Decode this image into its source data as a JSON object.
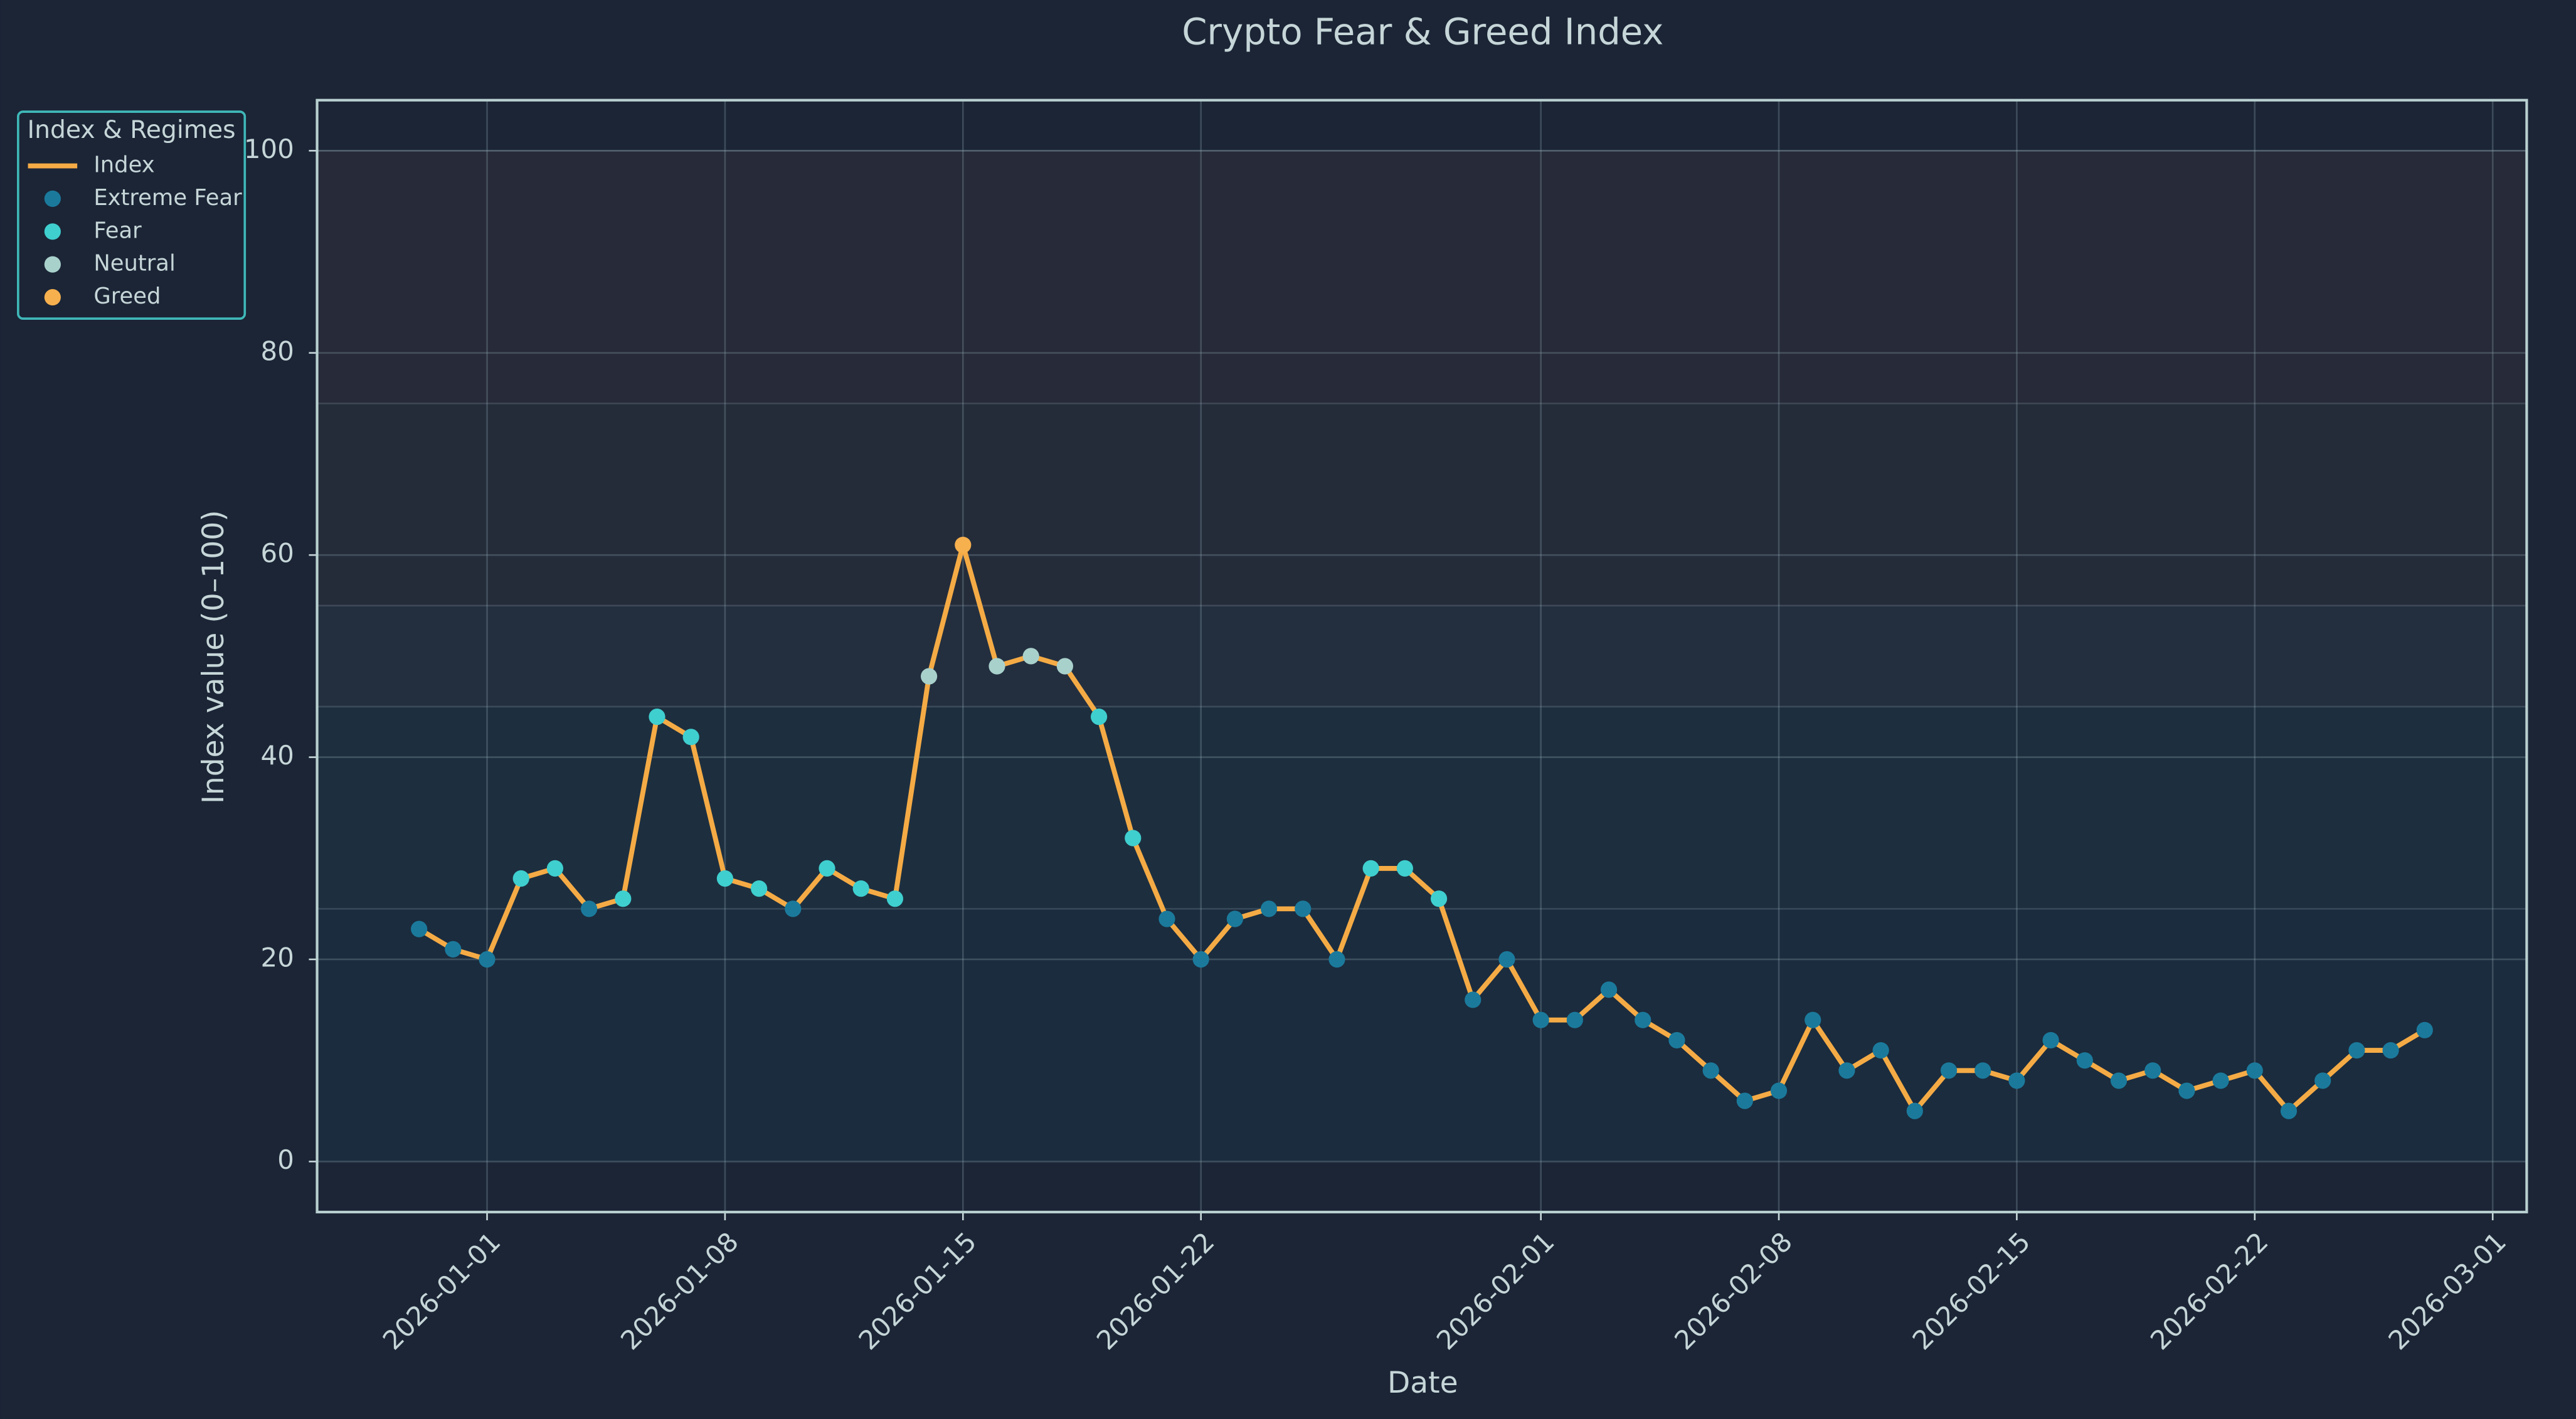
{
  "chart_data": {
    "type": "line",
    "title": "Crypto Fear & Greed Index",
    "x_label": "Date",
    "y_label": "Index value (0–100)",
    "x": [
      "2025-12-30",
      "2025-12-31",
      "2026-01-01",
      "2026-01-02",
      "2026-01-03",
      "2026-01-04",
      "2026-01-05",
      "2026-01-06",
      "2026-01-07",
      "2026-01-08",
      "2026-01-09",
      "2026-01-10",
      "2026-01-11",
      "2026-01-12",
      "2026-01-13",
      "2026-01-14",
      "2026-01-15",
      "2026-01-16",
      "2026-01-17",
      "2026-01-18",
      "2026-01-19",
      "2026-01-20",
      "2026-01-21",
      "2026-01-22",
      "2026-01-23",
      "2026-01-24",
      "2026-01-25",
      "2026-01-26",
      "2026-01-27",
      "2026-01-28",
      "2026-01-29",
      "2026-01-30",
      "2026-01-31",
      "2026-02-01",
      "2026-02-02",
      "2026-02-03",
      "2026-02-04",
      "2026-02-05",
      "2026-02-06",
      "2026-02-07",
      "2026-02-08",
      "2026-02-09",
      "2026-02-10",
      "2026-02-11",
      "2026-02-12",
      "2026-02-13",
      "2026-02-14",
      "2026-02-15",
      "2026-02-16",
      "2026-02-17",
      "2026-02-18",
      "2026-02-19",
      "2026-02-20",
      "2026-02-21",
      "2026-02-22",
      "2026-02-23",
      "2026-02-24",
      "2026-02-25",
      "2026-02-26",
      "2026-02-27"
    ],
    "series": [
      {
        "name": "Index",
        "color": "#f5ab45",
        "values": [
          23,
          21,
          20,
          28,
          29,
          25,
          26,
          44,
          42,
          28,
          27,
          25,
          29,
          27,
          26,
          48,
          61,
          49,
          50,
          49,
          44,
          32,
          24,
          20,
          24,
          25,
          25,
          20,
          29,
          29,
          26,
          16,
          20,
          14,
          14,
          17,
          14,
          12,
          9,
          6,
          7,
          14,
          9,
          11,
          5,
          9,
          9,
          8,
          12,
          10,
          8,
          9,
          7,
          8,
          9,
          5,
          8,
          11,
          11,
          13
        ]
      }
    ],
    "regimes": [
      {
        "name": "Extreme Fear",
        "color": "#1b7a9c"
      },
      {
        "name": "Fear",
        "color": "#3fcfcf"
      },
      {
        "name": "Neutral",
        "color": "#a9d1cc"
      },
      {
        "name": "Greed",
        "color": "#f7b04e"
      }
    ],
    "point_regimes": [
      0,
      0,
      0,
      1,
      1,
      0,
      1,
      1,
      1,
      1,
      1,
      0,
      1,
      1,
      1,
      2,
      3,
      2,
      2,
      2,
      1,
      1,
      0,
      0,
      0,
      0,
      0,
      0,
      1,
      1,
      1,
      0,
      0,
      0,
      0,
      0,
      0,
      0,
      0,
      0,
      0,
      0,
      0,
      0,
      0,
      0,
      0,
      0,
      0,
      0,
      0,
      0,
      0,
      0,
      0,
      0,
      0,
      0,
      0,
      0
    ],
    "bands": [
      {
        "from": 0,
        "to": 25,
        "color": "#1f6f86"
      },
      {
        "from": 25,
        "to": 45,
        "color": "#2d8c96"
      },
      {
        "from": 45,
        "to": 55,
        "color": "#6f8a90"
      },
      {
        "from": 55,
        "to": 75,
        "color": "#7a6a5e"
      },
      {
        "from": 75,
        "to": 100,
        "color": "#8a5a5a"
      }
    ],
    "legend_title": "Index & Regimes",
    "legend": "upper left",
    "grid": true,
    "xlim": [
      "2025-12-27",
      "2026-03-02"
    ],
    "xticks": [
      "2026-01-01",
      "2026-01-08",
      "2026-01-15",
      "2026-01-22",
      "2026-02-01",
      "2026-02-08",
      "2026-02-15",
      "2026-02-22",
      "2026-03-01"
    ],
    "ylim": [
      -5,
      105
    ],
    "yticks": [
      0,
      20,
      40,
      60,
      80,
      100
    ]
  }
}
